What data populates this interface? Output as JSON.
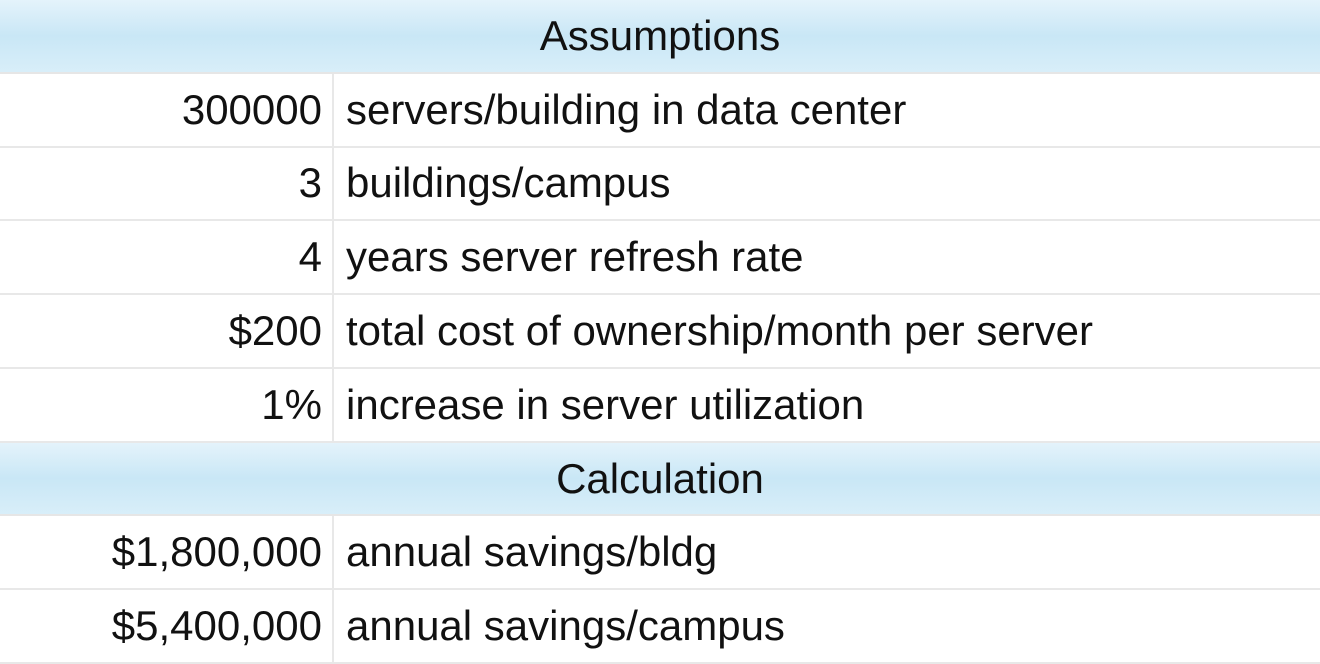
{
  "table": {
    "sections": [
      {
        "title": "Assumptions",
        "rows": [
          [
            "300000",
            "servers/building in data center"
          ],
          [
            "3",
            "buildings/campus"
          ],
          [
            "4",
            "years server refresh rate"
          ],
          [
            "$200",
            "total cost of ownership/month per server"
          ],
          [
            "1%",
            "increase in server utilization"
          ]
        ]
      },
      {
        "title": "Calculation",
        "rows": [
          [
            "$1,800,000",
            "annual savings/bldg"
          ],
          [
            "$5,400,000",
            "annual savings/campus"
          ]
        ]
      }
    ]
  }
}
